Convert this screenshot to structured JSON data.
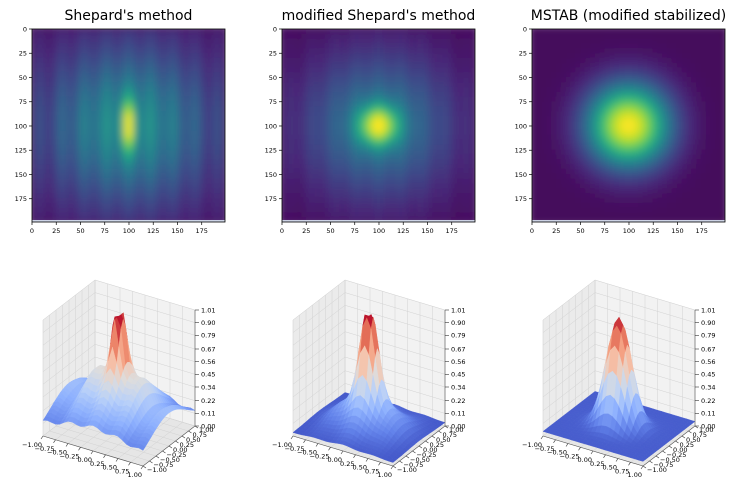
{
  "chart_data": [
    {
      "type": "heatmap",
      "title": "Shepard's method",
      "method": "shepard",
      "xticks": [
        "0",
        "25",
        "50",
        "75",
        "100",
        "125",
        "150",
        "175"
      ],
      "yticks": [
        "0",
        "25",
        "50",
        "75",
        "100",
        "125",
        "150",
        "175"
      ],
      "xlim": [
        0,
        199
      ],
      "ylim": [
        199,
        0
      ],
      "colormap": "viridis",
      "peak": [
        100,
        100
      ]
    },
    {
      "type": "heatmap",
      "title": "modified Shepard's method",
      "method": "modified",
      "xticks": [
        "0",
        "25",
        "50",
        "75",
        "100",
        "125",
        "150",
        "175"
      ],
      "yticks": [
        "0",
        "25",
        "50",
        "75",
        "100",
        "125",
        "150",
        "175"
      ],
      "xlim": [
        0,
        199
      ],
      "ylim": [
        199,
        0
      ],
      "colormap": "viridis",
      "peak": [
        100,
        100
      ]
    },
    {
      "type": "heatmap",
      "title": "MSTAB (modified stabilized)",
      "method": "mstab",
      "xticks": [
        "0",
        "25",
        "50",
        "75",
        "100",
        "125",
        "150",
        "175"
      ],
      "yticks": [
        "0",
        "25",
        "50",
        "75",
        "100",
        "125",
        "150",
        "175"
      ],
      "xlim": [
        0,
        199
      ],
      "ylim": [
        199,
        0
      ],
      "colormap": "viridis",
      "peak": [
        100,
        100
      ]
    },
    {
      "type": "surface",
      "method": "shepard",
      "xticks": [
        "−1.00",
        "−0.75",
        "−0.50",
        "−0.25",
        "0.00",
        "0.25",
        "0.50",
        "0.75",
        "1.00"
      ],
      "yticks": [
        "−1.00",
        "−0.75",
        "−0.50",
        "−0.25",
        "0.00",
        "0.25",
        "0.50",
        "0.75",
        "1.00"
      ],
      "zticks": [
        "0.00",
        "0.11",
        "0.22",
        "0.34",
        "0.45",
        "0.56",
        "0.67",
        "0.79",
        "0.90",
        "1.01"
      ],
      "xlim": [
        -1,
        1
      ],
      "ylim": [
        -1,
        1
      ],
      "zlim": [
        0,
        1.01
      ],
      "colormap": "coolwarm"
    },
    {
      "type": "surface",
      "method": "modified",
      "xticks": [
        "−1.00",
        "−0.75",
        "−0.50",
        "−0.25",
        "0.00",
        "0.25",
        "0.50",
        "0.75",
        "1.00"
      ],
      "yticks": [
        "−1.00",
        "−0.75",
        "−0.50",
        "−0.25",
        "0.00",
        "0.25",
        "0.50",
        "0.75",
        "1.00"
      ],
      "zticks": [
        "0.00",
        "0.11",
        "0.22",
        "0.34",
        "0.45",
        "0.56",
        "0.67",
        "0.79",
        "0.90",
        "1.01"
      ],
      "xlim": [
        -1,
        1
      ],
      "ylim": [
        -1,
        1
      ],
      "zlim": [
        0,
        1.01
      ],
      "colormap": "coolwarm"
    },
    {
      "type": "surface",
      "method": "mstab",
      "xticks": [
        "−1.00",
        "−0.75",
        "−0.50",
        "−0.25",
        "0.00",
        "0.25",
        "0.50",
        "0.75",
        "1.00"
      ],
      "yticks": [
        "−1.00",
        "−0.75",
        "−0.50",
        "−0.25",
        "0.00",
        "0.25",
        "0.50",
        "0.75",
        "1.00"
      ],
      "zticks": [
        "0.00",
        "0.11",
        "0.22",
        "0.34",
        "0.45",
        "0.56",
        "0.67",
        "0.79",
        "0.90",
        "1.01"
      ],
      "xlim": [
        -1,
        1
      ],
      "ylim": [
        -1,
        1
      ],
      "zlim": [
        0,
        1.01
      ],
      "colormap": "coolwarm"
    }
  ]
}
